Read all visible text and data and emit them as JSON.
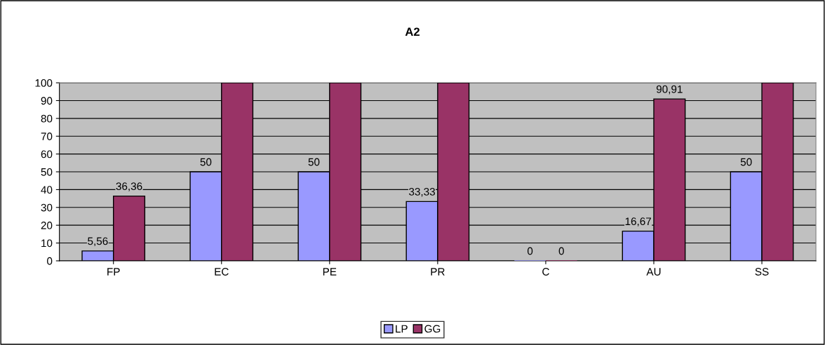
{
  "chart_data": {
    "type": "bar",
    "title": "A2",
    "categories": [
      "FP",
      "EC",
      "PE",
      "PR",
      "C",
      "AU",
      "SS"
    ],
    "series": [
      {
        "name": "LP",
        "color": "#9999ff",
        "values": [
          5.56,
          50,
          50,
          33.33,
          0,
          16.67,
          50
        ],
        "value_labels": [
          "5,56",
          "50",
          "50",
          "33,33",
          "0",
          "16,67",
          "50"
        ]
      },
      {
        "name": "GG",
        "color": "#993366",
        "values": [
          36.36,
          100,
          100,
          100,
          0,
          90.91,
          100
        ],
        "value_labels": [
          "36,36",
          null,
          null,
          null,
          "0",
          "90,91",
          null
        ]
      }
    ],
    "ylim": [
      0,
      100
    ],
    "yticks": [
      0,
      10,
      20,
      30,
      40,
      50,
      60,
      70,
      80,
      90,
      100
    ],
    "grid": "y",
    "legend": "bottom"
  }
}
